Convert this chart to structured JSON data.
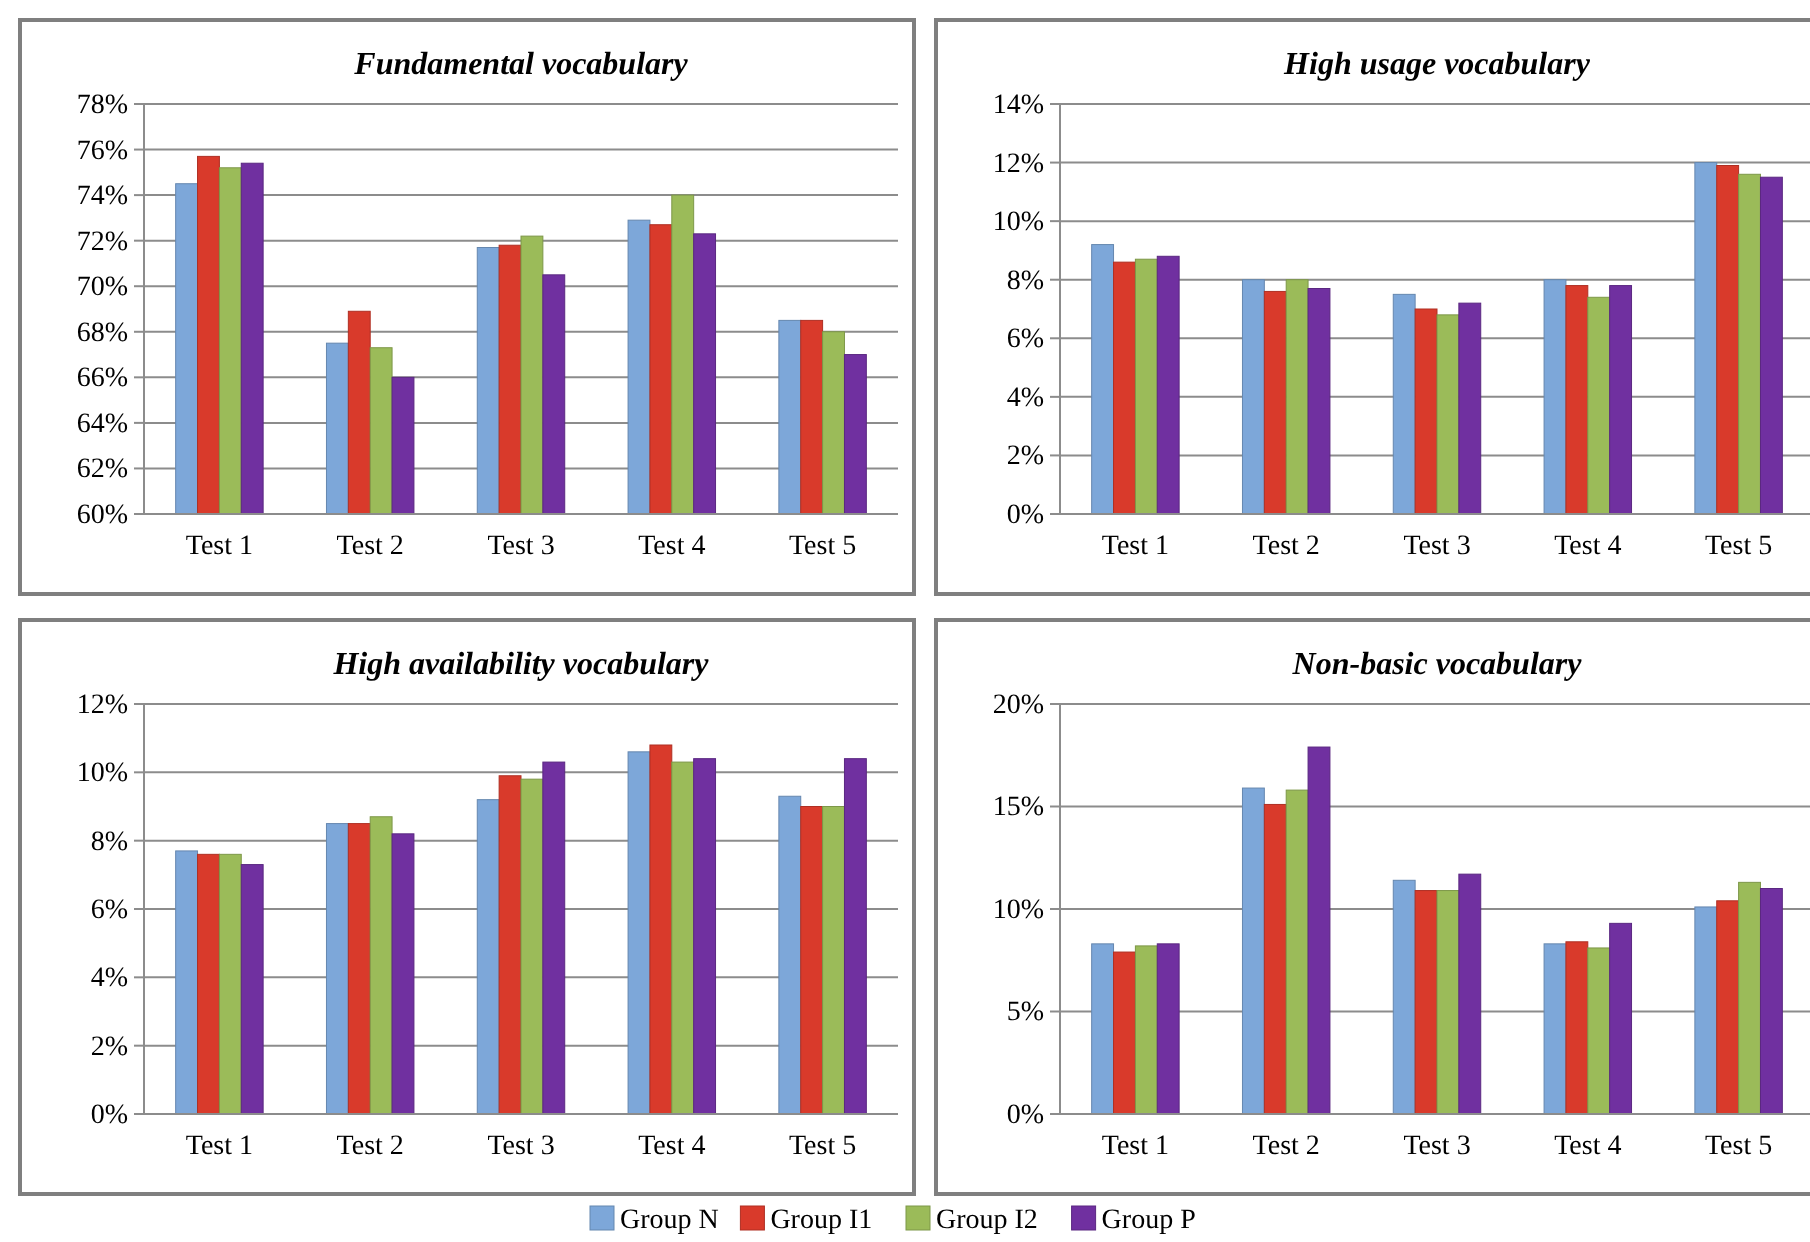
{
  "chart_data": [
    {
      "type": "bar",
      "title": "Fundamental vocabulary",
      "categories": [
        "Test 1",
        "Test 2",
        "Test 3",
        "Test 4",
        "Test 5"
      ],
      "ylim": [
        60,
        78
      ],
      "yticks": [
        {
          "value": 60,
          "label": "60%"
        },
        {
          "value": 62,
          "label": "62%"
        },
        {
          "value": 64,
          "label": "64%"
        },
        {
          "value": 66,
          "label": "66%"
        },
        {
          "value": 68,
          "label": "68%"
        },
        {
          "value": 70,
          "label": "70%"
        },
        {
          "value": 72,
          "label": "72%"
        },
        {
          "value": 74,
          "label": "74%"
        },
        {
          "value": 76,
          "label": "76%"
        },
        {
          "value": 78,
          "label": "78%"
        }
      ],
      "grid": "y",
      "legend": "bottom",
      "series": [
        {
          "name": "Group N",
          "color": "#7da7d9",
          "values": [
            74.5,
            67.5,
            71.7,
            72.9,
            68.5
          ]
        },
        {
          "name": "Group I1",
          "color": "#d93a2b",
          "values": [
            75.7,
            68.9,
            71.8,
            72.7,
            68.5
          ]
        },
        {
          "name": "Group I2",
          "color": "#9bbb59",
          "values": [
            75.2,
            67.3,
            72.2,
            74.0,
            68.0
          ]
        },
        {
          "name": "Group P",
          "color": "#7030a0",
          "values": [
            75.4,
            66.0,
            70.5,
            72.3,
            67.0
          ]
        }
      ]
    },
    {
      "type": "bar",
      "title": "High usage vocabulary",
      "categories": [
        "Test 1",
        "Test 2",
        "Test 3",
        "Test 4",
        "Test 5"
      ],
      "ylim": [
        0,
        14
      ],
      "yticks": [
        {
          "value": 0,
          "label": "0%"
        },
        {
          "value": 2,
          "label": "2%"
        },
        {
          "value": 4,
          "label": "4%"
        },
        {
          "value": 6,
          "label": "6%"
        },
        {
          "value": 8,
          "label": "8%"
        },
        {
          "value": 10,
          "label": "10%"
        },
        {
          "value": 12,
          "label": "12%"
        },
        {
          "value": 14,
          "label": "14%"
        }
      ],
      "grid": "y",
      "series": [
        {
          "color": "#7da7d9",
          "values": [
            9.2,
            8.0,
            7.5,
            8.0,
            12.0
          ]
        },
        {
          "color": "#d93a2b",
          "values": [
            8.6,
            7.6,
            7.0,
            7.8,
            11.9
          ]
        },
        {
          "color": "#9bbb59",
          "values": [
            8.7,
            8.0,
            6.8,
            7.4,
            11.6
          ]
        },
        {
          "color": "#7030a0",
          "values": [
            8.8,
            7.7,
            7.2,
            7.8,
            11.5
          ]
        }
      ]
    },
    {
      "type": "bar",
      "title": "High availability vocabulary",
      "categories": [
        "Test 1",
        "Test 2",
        "Test 3",
        "Test 4",
        "Test 5"
      ],
      "ylim": [
        0,
        12
      ],
      "yticks": [
        {
          "value": 0,
          "label": "0%"
        },
        {
          "value": 2,
          "label": "2%"
        },
        {
          "value": 4,
          "label": "4%"
        },
        {
          "value": 6,
          "label": "6%"
        },
        {
          "value": 8,
          "label": "8%"
        },
        {
          "value": 10,
          "label": "10%"
        },
        {
          "value": 12,
          "label": "12%"
        }
      ],
      "grid": "y",
      "series": [
        {
          "color": "#7da7d9",
          "values": [
            7.7,
            8.5,
            9.2,
            10.6,
            9.3
          ]
        },
        {
          "color": "#d93a2b",
          "values": [
            7.6,
            8.5,
            9.9,
            10.8,
            9.0
          ]
        },
        {
          "color": "#9bbb59",
          "values": [
            7.6,
            8.7,
            9.8,
            10.3,
            9.0
          ]
        },
        {
          "color": "#7030a0",
          "values": [
            7.3,
            8.2,
            10.3,
            10.4,
            10.4
          ]
        }
      ]
    },
    {
      "type": "bar",
      "title": "Non-basic vocabulary",
      "categories": [
        "Test 1",
        "Test 2",
        "Test 3",
        "Test 4",
        "Test 5"
      ],
      "ylim": [
        0,
        20
      ],
      "yticks": [
        {
          "value": 0,
          "label": "0%"
        },
        {
          "value": 5,
          "label": "5%"
        },
        {
          "value": 10,
          "label": "10%"
        },
        {
          "value": 15,
          "label": "15%"
        },
        {
          "value": 20,
          "label": "20%"
        }
      ],
      "grid": "y",
      "series": [
        {
          "color": "#7da7d9",
          "values": [
            8.3,
            15.9,
            11.4,
            8.3,
            10.1
          ]
        },
        {
          "color": "#d93a2b",
          "values": [
            7.9,
            15.1,
            10.9,
            8.4,
            10.4
          ]
        },
        {
          "color": "#9bbb59",
          "values": [
            8.2,
            15.8,
            10.9,
            8.1,
            11.3
          ]
        },
        {
          "color": "#7030a0",
          "values": [
            8.3,
            17.9,
            11.7,
            9.3,
            11.0
          ]
        }
      ]
    }
  ]
}
